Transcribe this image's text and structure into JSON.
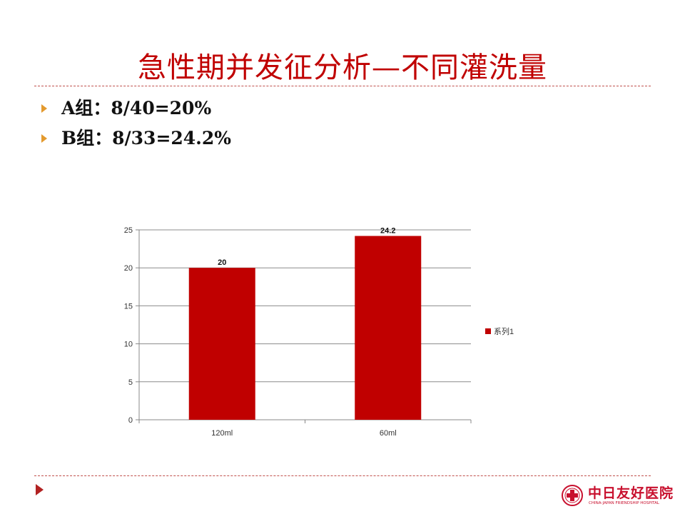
{
  "slide": {
    "title": "急性期并发征分析—不同灌洗量",
    "bullets": [
      {
        "text": "A组：8/40=20%"
      },
      {
        "text": "B组：8/33=24.2%"
      }
    ]
  },
  "logo": {
    "name_zh": "中日友好医院",
    "name_en": "CHINA-JAPAN FRIENDSHIP HOSPITAL"
  },
  "colors": {
    "title": "#c00000",
    "bar": "#c00000",
    "rule": "#c0504d",
    "bullet_marker": "#e39a2e"
  },
  "chart_data": {
    "type": "bar",
    "categories": [
      "120ml",
      "60ml"
    ],
    "series": [
      {
        "name": "系列1",
        "values": [
          20,
          24.2
        ],
        "labels": [
          "20",
          "24.2"
        ],
        "color": "#c00000"
      }
    ],
    "title": "",
    "xlabel": "",
    "ylabel": "",
    "ylim": [
      0,
      25
    ],
    "yticks": [
      0,
      5,
      10,
      15,
      20,
      25
    ],
    "grid": true,
    "legend_position": "right"
  }
}
